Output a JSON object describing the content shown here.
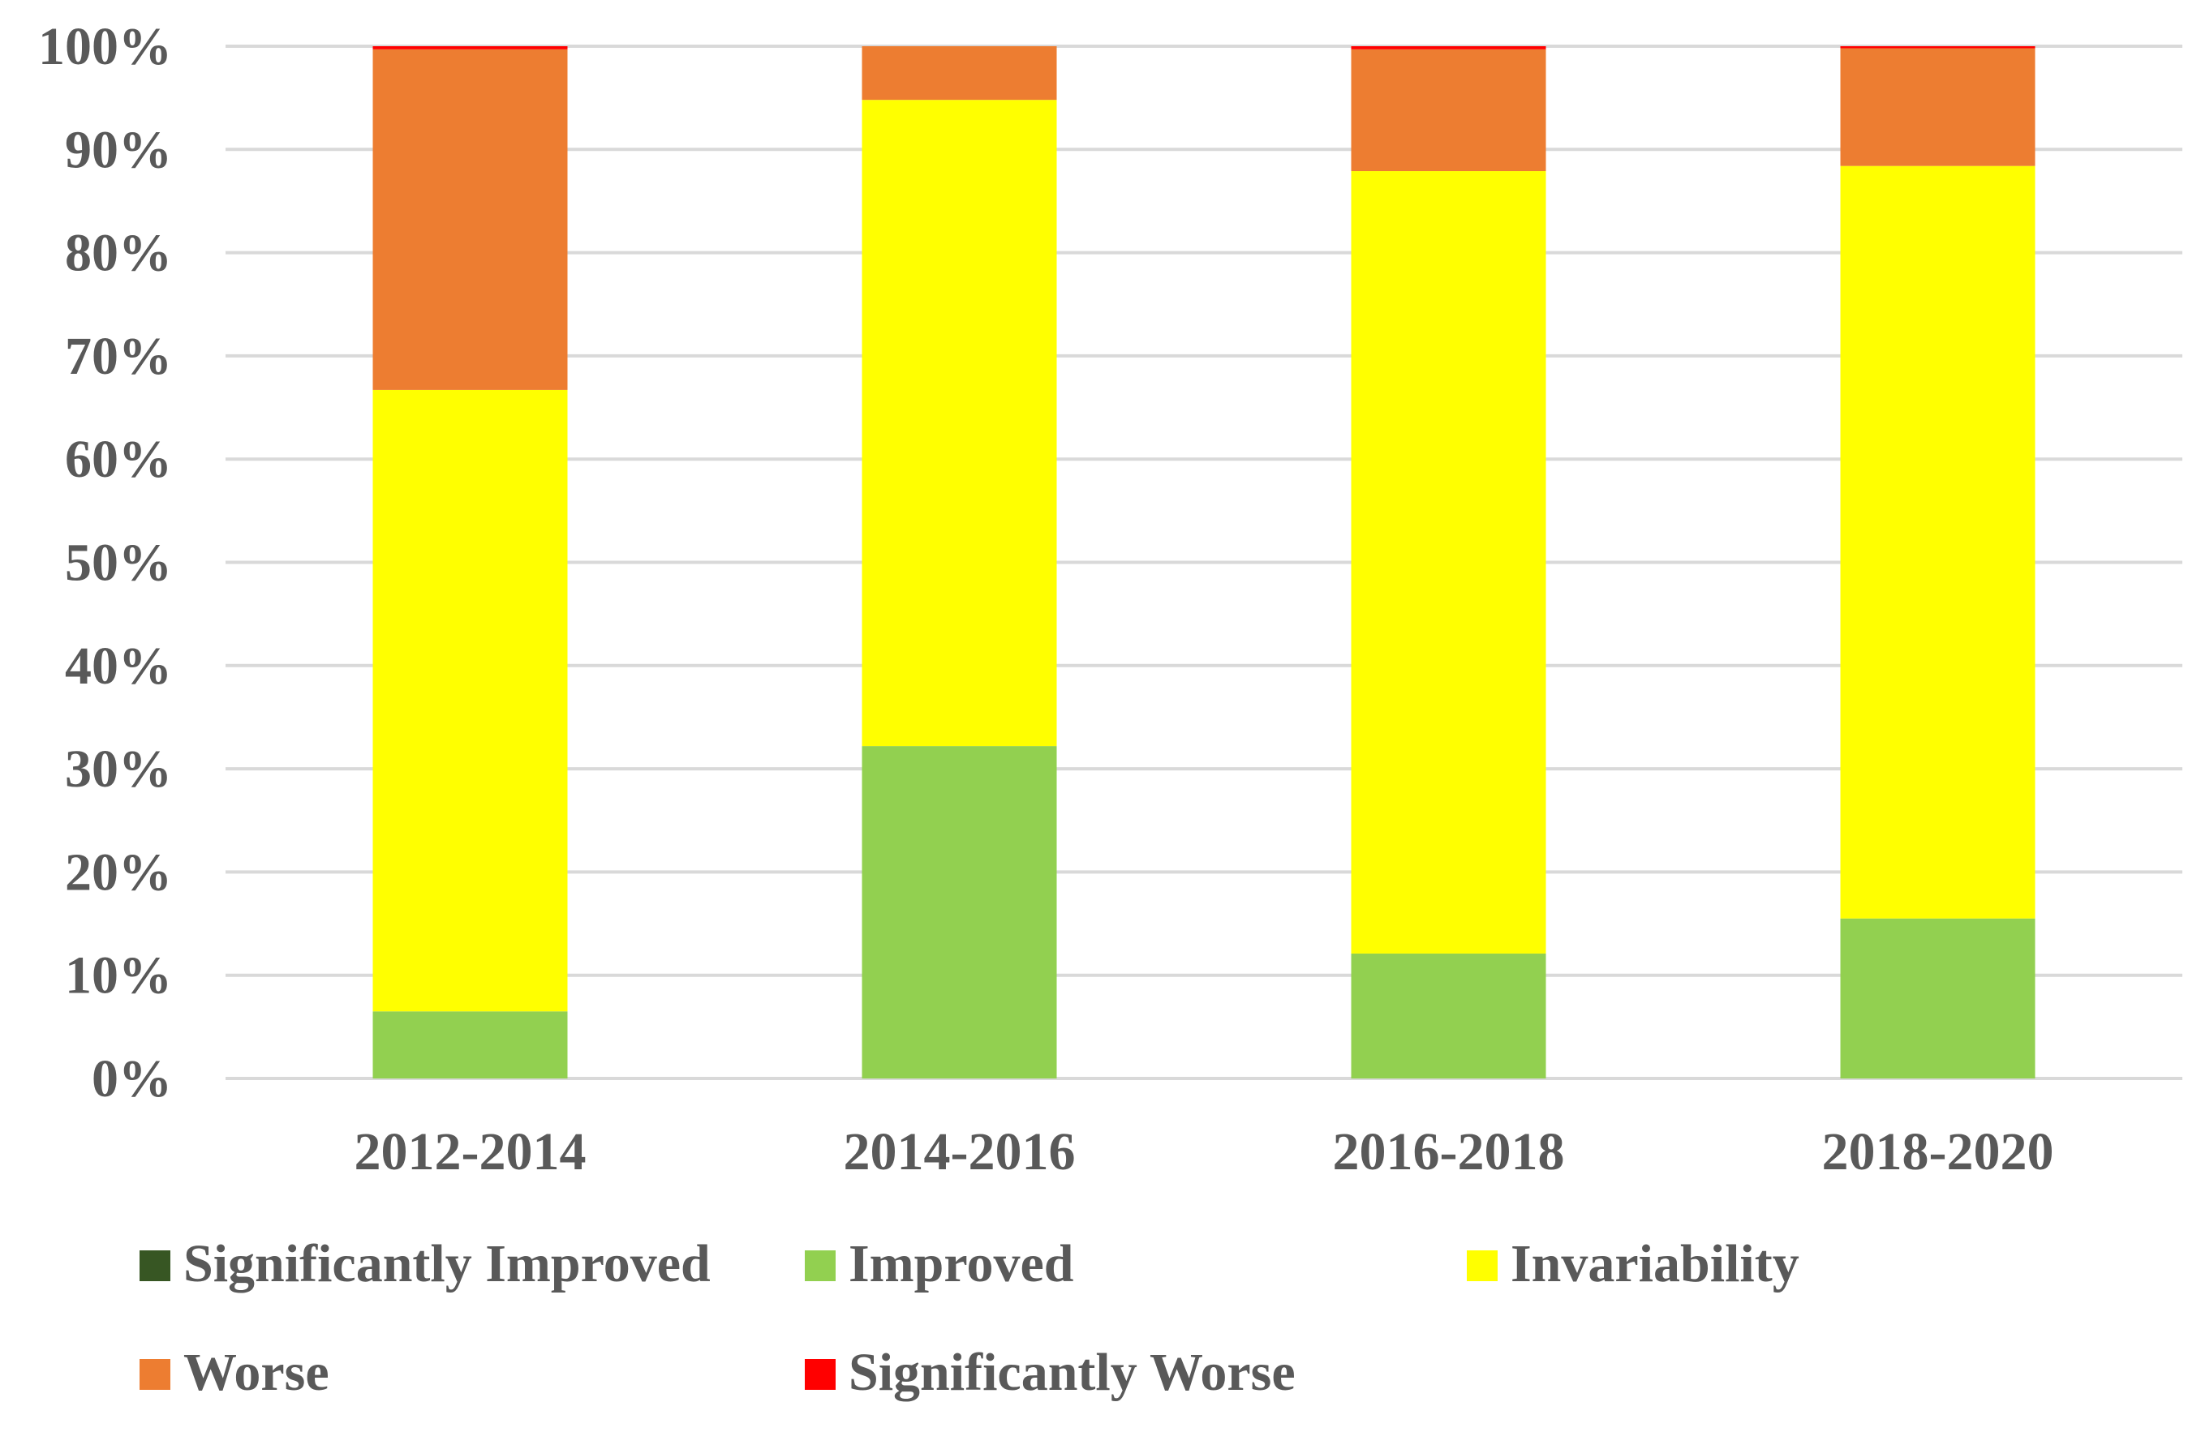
{
  "chart_data": {
    "type": "bar",
    "stacked": true,
    "title": "",
    "xlabel": "",
    "ylabel": "",
    "ylim": [
      0,
      100
    ],
    "y_ticks": [
      "0%",
      "10%",
      "20%",
      "30%",
      "40%",
      "50%",
      "60%",
      "70%",
      "80%",
      "90%",
      "100%"
    ],
    "categories": [
      "2012-2014",
      "2014-2016",
      "2016-2018",
      "2018-2020"
    ],
    "series": [
      {
        "name": "Significantly Improved",
        "color": "#375623",
        "values": [
          0,
          0,
          0,
          0
        ]
      },
      {
        "name": "Improved",
        "color": "#92d050",
        "values": [
          6.5,
          32.2,
          12.1,
          15.5
        ]
      },
      {
        "name": "Invariability",
        "color": "#ffff00",
        "values": [
          60.2,
          62.6,
          75.8,
          72.9
        ]
      },
      {
        "name": "Worse",
        "color": "#ed7d31",
        "values": [
          33.0,
          5.2,
          11.8,
          11.4
        ]
      },
      {
        "name": "Significantly Worse",
        "color": "#ff0000",
        "values": [
          0.3,
          0.0,
          0.3,
          0.2
        ]
      }
    ],
    "grid": true,
    "legend_position": "bottom"
  }
}
